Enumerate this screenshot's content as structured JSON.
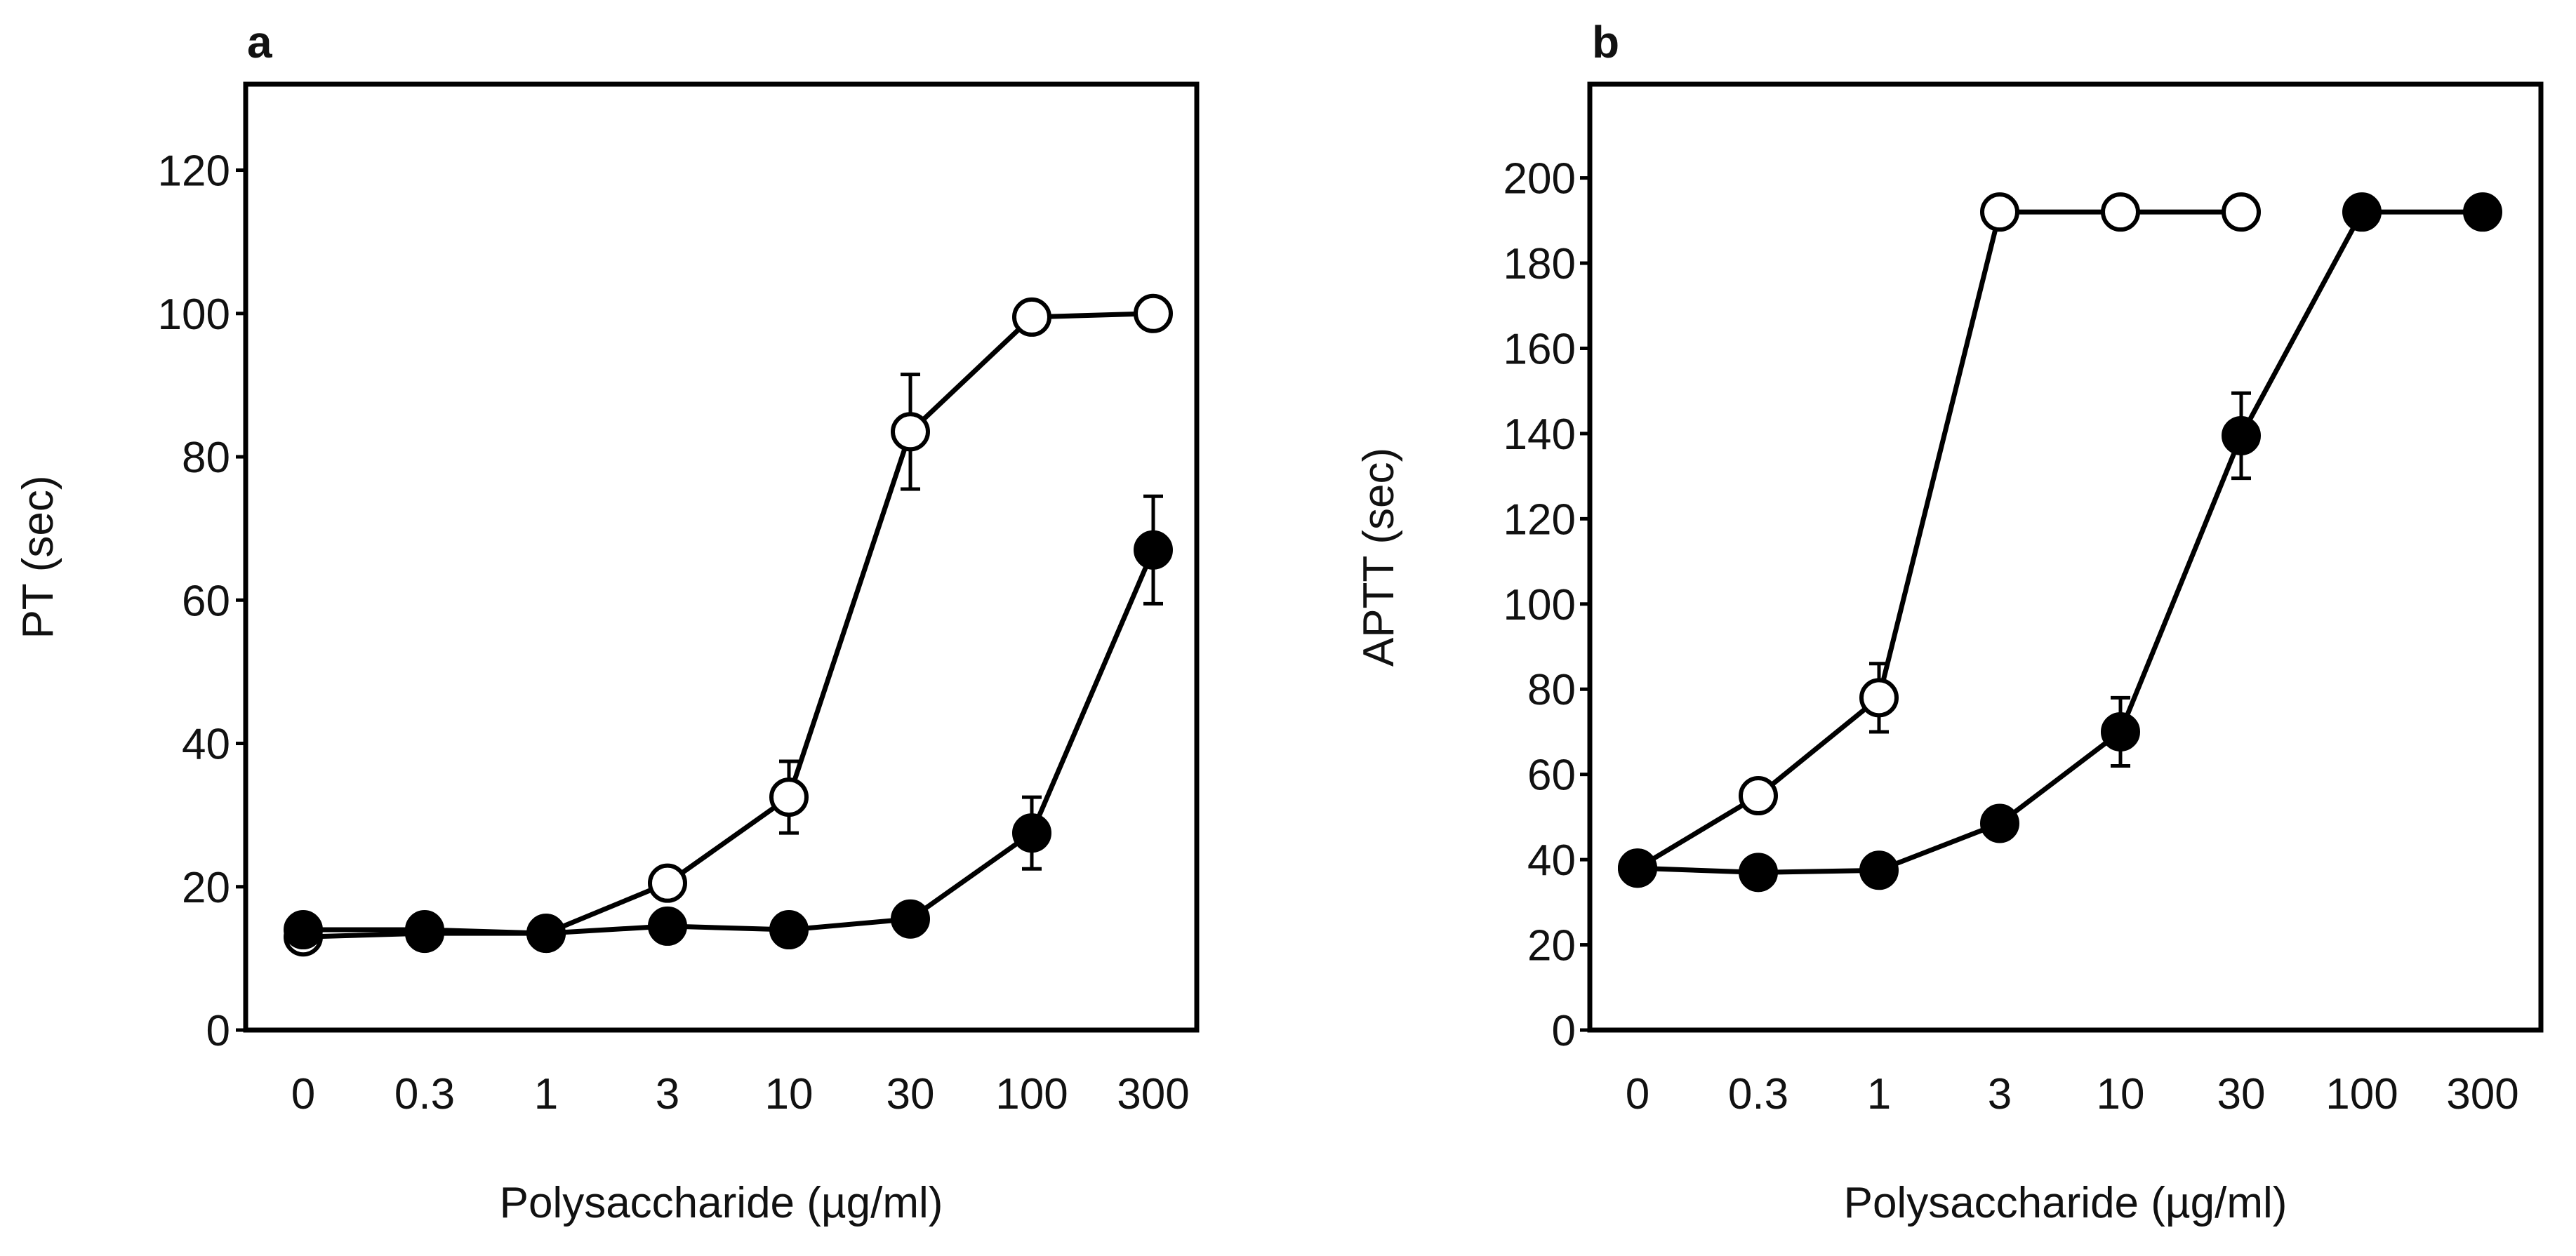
{
  "chart_data": [
    {
      "type": "line",
      "panel_label": "a",
      "title": "",
      "xlabel": "Polysaccharide (µg/ml)",
      "ylabel": "PT (sec)",
      "categories": [
        "0",
        "0.3",
        "1",
        "3",
        "10",
        "30",
        "100",
        "300"
      ],
      "ylim": [
        0,
        132
      ],
      "yticks": [
        0,
        20,
        40,
        60,
        80,
        100,
        120
      ],
      "series": [
        {
          "name": "open",
          "marker": "open-circle",
          "values": [
            13,
            13.5,
            13.5,
            20.5,
            32.5,
            83.5,
            99.5,
            100
          ],
          "errors": [
            0,
            0,
            0,
            0,
            5,
            8,
            0,
            0
          ]
        },
        {
          "name": "filled",
          "marker": "filled-circle",
          "values": [
            14,
            14,
            13.5,
            14.5,
            14,
            15.5,
            27.5,
            67
          ],
          "errors": [
            0,
            0,
            0,
            0,
            0,
            0,
            5,
            7.5
          ]
        }
      ]
    },
    {
      "type": "line",
      "panel_label": "b",
      "title": "",
      "xlabel": "Polysaccharide (µg/ml)",
      "ylabel": "APTT (sec)",
      "categories": [
        "0",
        "0.3",
        "1",
        "3",
        "10",
        "30",
        "100",
        "300"
      ],
      "ylim": [
        0,
        222
      ],
      "yticks": [
        0,
        20,
        40,
        60,
        80,
        100,
        120,
        140,
        160,
        180,
        200
      ],
      "series": [
        {
          "name": "open",
          "marker": "open-circle",
          "values": [
            38,
            55,
            78,
            192,
            192,
            192,
            null,
            null
          ],
          "errors": [
            0,
            0,
            8,
            0,
            0,
            0,
            0,
            0
          ]
        },
        {
          "name": "filled",
          "marker": "filled-circle",
          "values": [
            38,
            37,
            37.5,
            48.5,
            70,
            139.5,
            192,
            192
          ],
          "errors": [
            0,
            0,
            0,
            0,
            8,
            10,
            0,
            0
          ]
        }
      ]
    }
  ]
}
